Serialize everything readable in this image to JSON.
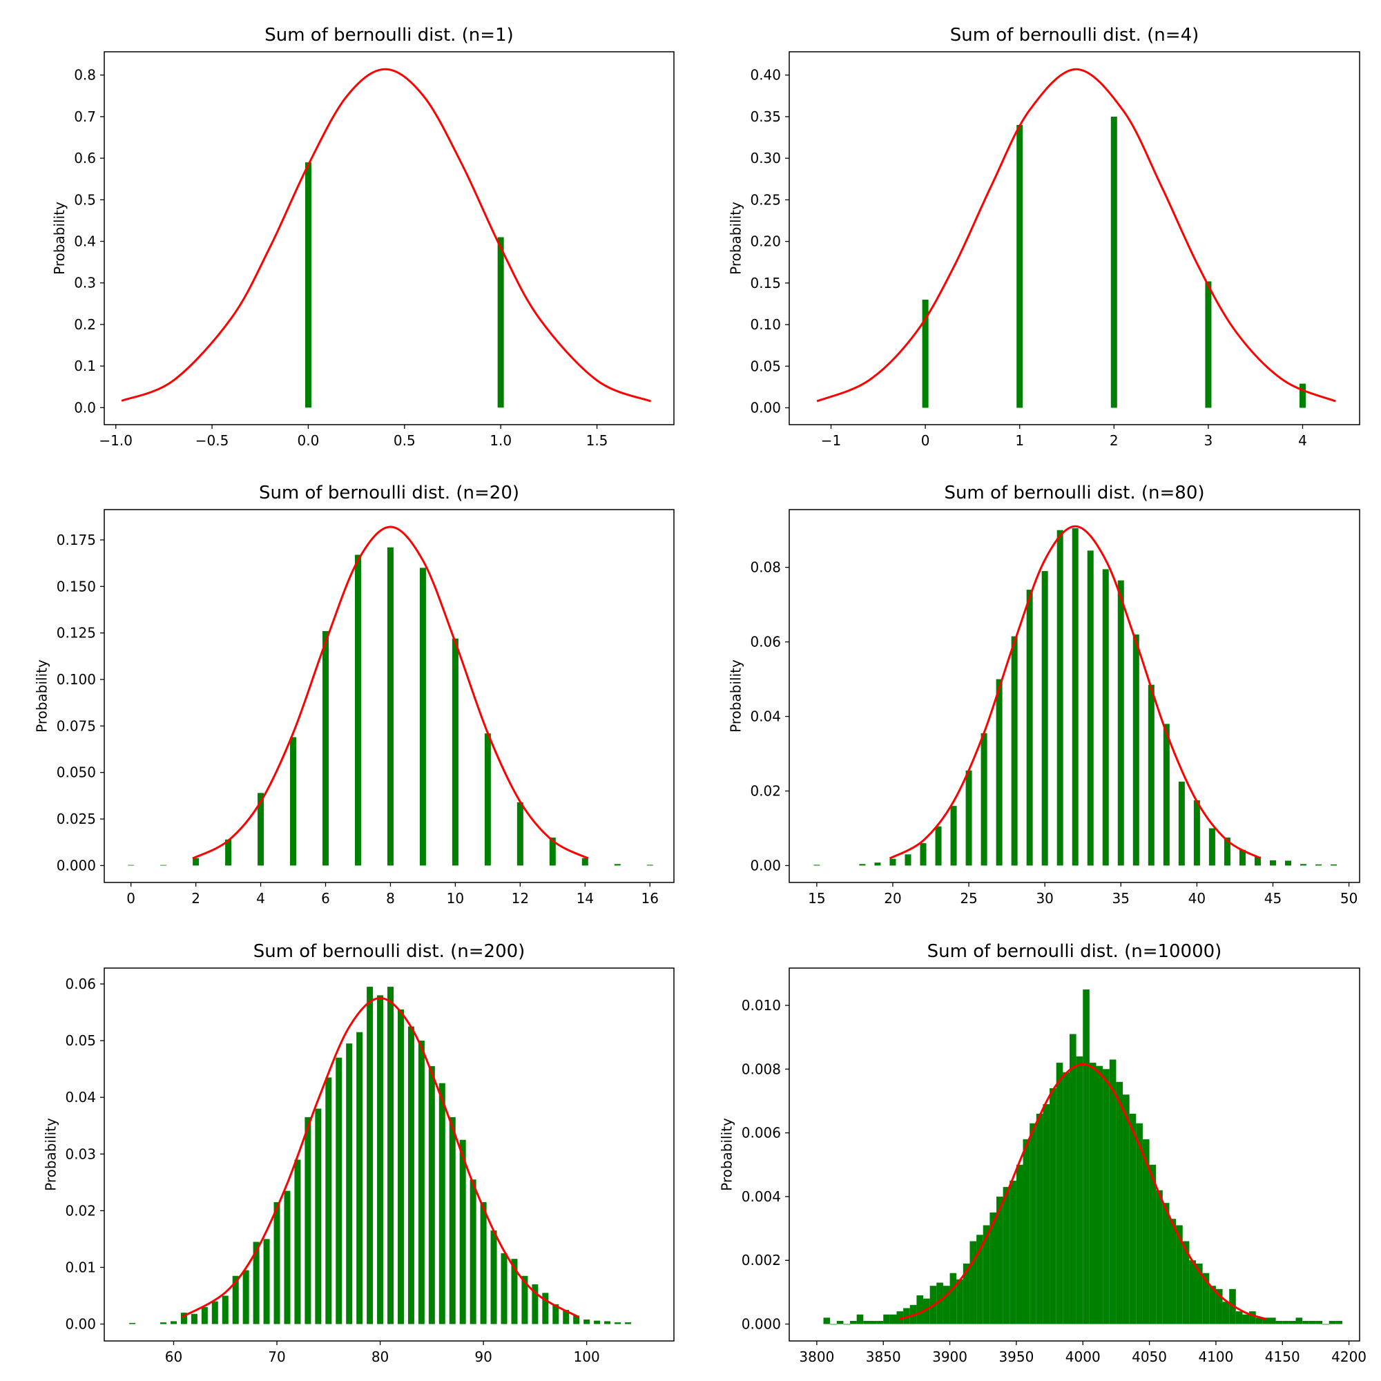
{
  "chart_data": [
    {
      "type": "bar",
      "title": "Sum of bernoulli dist. (n=1)",
      "y_label": "Probability",
      "xlim": [
        -1.06,
        1.9
      ],
      "ylim": [
        -0.041,
        0.856
      ],
      "xticks": [
        {
          "value": -1.0,
          "label": "−1.0"
        },
        {
          "value": -0.5,
          "label": "−0.5"
        },
        {
          "value": 0,
          "label": "0.0"
        },
        0.5,
        {
          "value": 1,
          "label": "1.0"
        },
        1.5
      ],
      "yticks": [
        {
          "value": 0,
          "label": "0.0"
        },
        0.1,
        0.2,
        0.3,
        0.4,
        0.5,
        0.6,
        0.7,
        0.8
      ],
      "color": "#008000",
      "x": [
        0,
        1
      ],
      "values": [
        0.59,
        0.41
      ],
      "curve": {
        "color": "#ff0000",
        "x": [
          -0.97,
          -0.7,
          -0.4,
          -0.2,
          0,
          0.2,
          0.4,
          0.6,
          0.8,
          1.0,
          1.2,
          1.5,
          1.78
        ],
        "values": [
          0.0163,
          0.0655,
          0.215,
          0.385,
          0.584,
          0.749,
          0.814,
          0.749,
          0.584,
          0.385,
          0.215,
          0.0655,
          0.0154
        ]
      }
    },
    {
      "type": "bar",
      "title": "Sum of bernoulli dist. (n=4)",
      "y_label": "Probability",
      "xlim": [
        -1.443,
        4.604
      ],
      "ylim": [
        -0.0203,
        0.428
      ],
      "xticks": [
        {
          "value": -1,
          "label": "−1"
        },
        0,
        1,
        2,
        3,
        4
      ],
      "yticks": [
        {
          "value": 0,
          "label": "0.00"
        },
        0.05,
        {
          "value": 0.1,
          "label": "0.10"
        },
        0.15,
        {
          "value": 0.2,
          "label": "0.20"
        },
        0.25,
        {
          "value": 0.3,
          "label": "0.30"
        },
        0.35,
        {
          "value": 0.4,
          "label": "0.40"
        }
      ],
      "color": "#008000",
      "x": [
        0,
        1,
        2,
        3,
        4
      ],
      "values": [
        0.13,
        0.34,
        0.35,
        0.152,
        0.029
      ],
      "curve": {
        "color": "#ff0000",
        "x": [
          -1.15,
          -0.6,
          -0.1,
          0.3,
          0.7,
          1.1,
          1.6,
          2.1,
          2.5,
          2.9,
          3.3,
          3.8,
          4.35
        ],
        "values": [
          0.0079,
          0.0328,
          0.0903,
          0.169,
          0.267,
          0.357,
          0.407,
          0.357,
          0.267,
          0.169,
          0.0903,
          0.0328,
          0.0079
        ]
      }
    },
    {
      "type": "bar",
      "title": "Sum of bernoulli dist. (n=20)",
      "y_label": "Probability",
      "xlim": [
        -0.823,
        16.74
      ],
      "ylim": [
        -0.0091,
        0.1913
      ],
      "xticks": [
        0,
        2,
        4,
        6,
        8,
        10,
        12,
        14,
        16
      ],
      "yticks": [
        {
          "value": 0,
          "label": "0.000"
        },
        0.025,
        {
          "value": 0.05,
          "label": "0.050"
        },
        0.075,
        {
          "value": 0.1,
          "label": "0.100"
        },
        0.125,
        {
          "value": 0.15,
          "label": "0.150"
        },
        0.175
      ],
      "color": "#008000",
      "x": [
        0,
        1,
        2,
        3,
        4,
        5,
        6,
        7,
        8,
        9,
        10,
        11,
        12,
        13,
        14,
        15,
        16
      ],
      "values": [
        0.0003,
        0.0003,
        0.004,
        0.014,
        0.039,
        0.069,
        0.126,
        0.167,
        0.171,
        0.16,
        0.122,
        0.071,
        0.034,
        0.015,
        0.004,
        0.0008,
        0.0004
      ],
      "curve": {
        "color": "#ff0000",
        "x": [
          1.9,
          3,
          4,
          5,
          6,
          7,
          8,
          9,
          10,
          11,
          12,
          13,
          14.1
        ],
        "values": [
          0.0038,
          0.0134,
          0.0343,
          0.0712,
          0.12,
          0.164,
          0.182,
          0.164,
          0.12,
          0.0712,
          0.0343,
          0.0134,
          0.0038
        ]
      }
    },
    {
      "type": "bar",
      "title": "Sum of bernoulli dist. (n=80)",
      "y_label": "Probability",
      "xlim": [
        13.19,
        50.7
      ],
      "ylim": [
        -0.00454,
        0.0955
      ],
      "xticks": [
        15,
        20,
        25,
        30,
        35,
        40,
        45,
        50
      ],
      "yticks": [
        {
          "value": 0,
          "label": "0.00"
        },
        0.02,
        0.04,
        0.06,
        0.08
      ],
      "color": "#008000",
      "x": [
        15,
        18,
        19,
        20,
        21,
        22,
        23,
        24,
        25,
        26,
        27,
        28,
        29,
        30,
        31,
        32,
        33,
        34,
        35,
        36,
        37,
        38,
        39,
        40,
        41,
        42,
        43,
        44,
        45,
        46,
        47,
        48,
        49
      ],
      "values": [
        0.0002,
        0.0004,
        0.0008,
        0.0018,
        0.003,
        0.006,
        0.0105,
        0.016,
        0.0255,
        0.0355,
        0.05,
        0.0615,
        0.074,
        0.079,
        0.09,
        0.0905,
        0.0845,
        0.0795,
        0.0765,
        0.062,
        0.0485,
        0.038,
        0.0225,
        0.0175,
        0.01,
        0.0075,
        0.0042,
        0.0024,
        0.0014,
        0.0013,
        0.0004,
        0.0003,
        0.0003
      ],
      "curve": {
        "color": "#ff0000",
        "x": [
          19.8,
          22,
          24,
          26,
          28,
          30,
          32,
          34,
          36,
          38,
          40,
          42,
          44.2
        ],
        "values": [
          0.0019,
          0.0067,
          0.0172,
          0.0356,
          0.06,
          0.082,
          0.091,
          0.082,
          0.06,
          0.0356,
          0.0172,
          0.0067,
          0.0019
        ]
      }
    },
    {
      "type": "bar",
      "title": "Sum of bernoulli dist. (n=200)",
      "y_label": "Probability",
      "xlim": [
        53.28,
        108.45
      ],
      "ylim": [
        -0.00298,
        0.0628
      ],
      "xticks": [
        60,
        70,
        80,
        90,
        100
      ],
      "yticks": [
        {
          "value": 0,
          "label": "0.00"
        },
        0.01,
        0.02,
        0.03,
        0.04,
        0.05,
        0.06
      ],
      "color": "#008000",
      "x": [
        56,
        59,
        60,
        61,
        62,
        63,
        64,
        65,
        66,
        67,
        68,
        69,
        70,
        71,
        72,
        73,
        74,
        75,
        76,
        77,
        78,
        79,
        80,
        81,
        82,
        83,
        84,
        85,
        86,
        87,
        88,
        89,
        90,
        91,
        92,
        93,
        94,
        95,
        96,
        97,
        98,
        99,
        100,
        101,
        102,
        103,
        104
      ],
      "values": [
        0.0002,
        0.0003,
        0.0005,
        0.002,
        0.0018,
        0.003,
        0.004,
        0.005,
        0.0085,
        0.0095,
        0.0145,
        0.015,
        0.0215,
        0.0235,
        0.029,
        0.0365,
        0.038,
        0.0435,
        0.047,
        0.0495,
        0.0515,
        0.0595,
        0.058,
        0.0595,
        0.0555,
        0.0525,
        0.05,
        0.0455,
        0.0425,
        0.0365,
        0.0325,
        0.0255,
        0.0215,
        0.0165,
        0.0125,
        0.0115,
        0.0085,
        0.007,
        0.0055,
        0.0035,
        0.0025,
        0.0015,
        0.0008,
        0.0006,
        0.0005,
        0.0003,
        0.0003
      ],
      "curve": {
        "color": "#ff0000",
        "x": [
          60.8,
          65,
          68,
          71,
          74,
          77,
          80,
          83,
          86,
          89,
          92,
          95,
          99.2
        ],
        "values": [
          0.00125,
          0.00556,
          0.0129,
          0.0248,
          0.0396,
          0.0524,
          0.0575,
          0.0524,
          0.0396,
          0.0248,
          0.0129,
          0.00556,
          0.00125
        ]
      }
    },
    {
      "type": "histogram",
      "title": "Sum of bernoulli dist. (n=10000)",
      "y_label": "Probability",
      "xlim": [
        3779.3,
        4208.0
      ],
      "ylim": [
        -0.00053,
        0.01117
      ],
      "xticks": [
        3800,
        3850,
        3900,
        3950,
        4000,
        4050,
        4100,
        4150,
        4200
      ],
      "yticks": [
        {
          "value": 0,
          "label": "0.000"
        },
        0.002,
        0.004,
        0.006,
        0.008,
        {
          "value": 0.01,
          "label": "0.010"
        }
      ],
      "color": "#008000",
      "bins": [
        3805,
        3810,
        3815,
        3820,
        3825,
        3830,
        3835,
        3840,
        3845,
        3850,
        3855,
        3860,
        3865,
        3870,
        3875,
        3880,
        3885,
        3890,
        3895,
        3900,
        3905,
        3910,
        3915,
        3920,
        3925,
        3930,
        3935,
        3940,
        3945,
        3950,
        3955,
        3960,
        3965,
        3970,
        3975,
        3980,
        3985,
        3990,
        3995,
        4000,
        4005,
        4010,
        4015,
        4020,
        4025,
        4030,
        4035,
        4040,
        4045,
        4050,
        4055,
        4060,
        4065,
        4070,
        4075,
        4080,
        4085,
        4090,
        4095,
        4100,
        4105,
        4110,
        4115,
        4120,
        4125,
        4130,
        4135,
        4140,
        4145,
        4150,
        4155,
        4160,
        4165,
        4170,
        4175,
        4180,
        4185,
        4190,
        4195
      ],
      "values": [
        0.0002,
        0,
        0.0001,
        0,
        0.0001,
        0.0003,
        0.0001,
        0.0001,
        0.0001,
        0.0003,
        0.0003,
        0.0004,
        0.0005,
        0.0006,
        0.0009,
        0.0008,
        0.0012,
        0.0013,
        0.0012,
        0.0016,
        0.0014,
        0.0019,
        0.0026,
        0.0028,
        0.0031,
        0.0035,
        0.004,
        0.0043,
        0.0045,
        0.005,
        0.0058,
        0.0063,
        0.0066,
        0.0069,
        0.0074,
        0.0082,
        0.0079,
        0.0091,
        0.0084,
        0.0105,
        0.0082,
        0.0081,
        0.008,
        0.0083,
        0.0076,
        0.0072,
        0.0066,
        0.0063,
        0.0058,
        0.005,
        0.0042,
        0.0038,
        0.0033,
        0.0031,
        0.0026,
        0.002,
        0.0019,
        0.0016,
        0.0012,
        0.0011,
        0.0007,
        0.0011,
        0.0004,
        0.0003,
        0.0004,
        0.0002,
        0.0002,
        0.0002,
        0.0001,
        0.0001,
        0.0001,
        0.0002,
        0.0001,
        0.0001,
        0.0001,
        0,
        0.0001,
        0.0001
      ],
      "curve": {
        "color": "#ff0000",
        "x": [
          3862,
          3880,
          3900,
          3920,
          3940,
          3960,
          3980,
          4000,
          4020,
          4040,
          4060,
          4080,
          4100,
          4120,
          4138
        ],
        "values": [
          0.000153,
          0.000404,
          0.00101,
          0.00214,
          0.00384,
          0.00584,
          0.0075,
          0.00815,
          0.0075,
          0.00584,
          0.00384,
          0.00214,
          0.00101,
          0.000404,
          0.000153
        ]
      }
    }
  ]
}
